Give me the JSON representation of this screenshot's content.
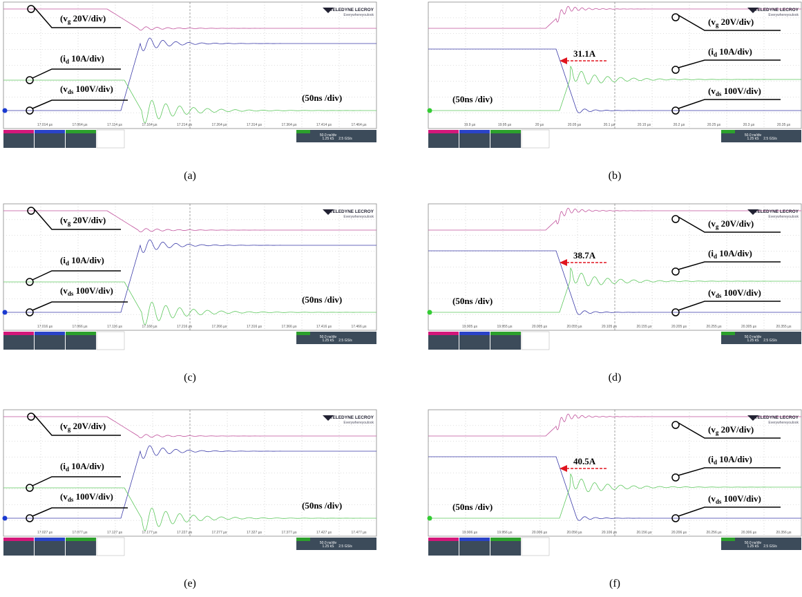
{
  "brand": {
    "name": "TELEDYNE LECROY",
    "tagline": "Everywhereyoulook"
  },
  "timebase": [
    "50.0 ns/div",
    "1.25 kS",
    "2.5 GS/s"
  ],
  "labels": {
    "vg": {
      "text": "(v",
      "sub": "g",
      "rest": " 20V/div)"
    },
    "id": {
      "text": "(i",
      "sub": "d",
      "rest": " 10A/div)"
    },
    "vds": {
      "text": "(v",
      "sub": "ds",
      "rest": " 100V/div)"
    },
    "time": "(50ns /div)"
  },
  "panels": [
    {
      "caption": "(a)",
      "mode": "on",
      "xticks": [
        "17.014 µs",
        "17.064 µs",
        "17.114 µs",
        "17.164 µs",
        "17.214 µs",
        "17.264 µs",
        "17.314 µs",
        "17.364 µs",
        "17.414 µs",
        "17.464 µs"
      ]
    },
    {
      "caption": "(b)",
      "mode": "off",
      "peak": "31.1A",
      "xticks": [
        "19.9 µs",
        "19.95 µs",
        "20 µs",
        "20.05 µs",
        "20.1 µs",
        "20.15 µs",
        "20.2 µs",
        "20.25 µs",
        "20.3 µs",
        "20.35 µs"
      ]
    },
    {
      "caption": "(c)",
      "mode": "on",
      "xticks": [
        "17.016 µs",
        "17.066 µs",
        "17.116 µs",
        "17.166 µs",
        "17.216 µs",
        "17.266 µs",
        "17.316 µs",
        "17.366 µs",
        "17.416 µs",
        "17.466 µs"
      ]
    },
    {
      "caption": "(d)",
      "mode": "off",
      "peak": "38.7A",
      "xticks": [
        "19.905 µs",
        "19.955 µs",
        "20.005 µs",
        "20.055 µs",
        "20.105 µs",
        "20.155 µs",
        "20.205 µs",
        "20.255 µs",
        "20.305 µs",
        "20.355 µs"
      ]
    },
    {
      "caption": "(e)",
      "mode": "on",
      "xticks": [
        "17.027 µs",
        "17.077 µs",
        "17.127 µs",
        "17.177 µs",
        "17.227 µs",
        "17.277 µs",
        "17.327 µs",
        "17.377 µs",
        "17.427 µs",
        "17.477 µs"
      ]
    },
    {
      "caption": "(f)",
      "mode": "off",
      "peak": "40.5A",
      "xticks": [
        "19.906 µs",
        "19.956 µs",
        "20.006 µs",
        "20.056 µs",
        "20.106 µs",
        "20.156 µs",
        "20.206 µs",
        "20.256 µs",
        "20.306 µs",
        "20.356 µs"
      ]
    }
  ]
}
